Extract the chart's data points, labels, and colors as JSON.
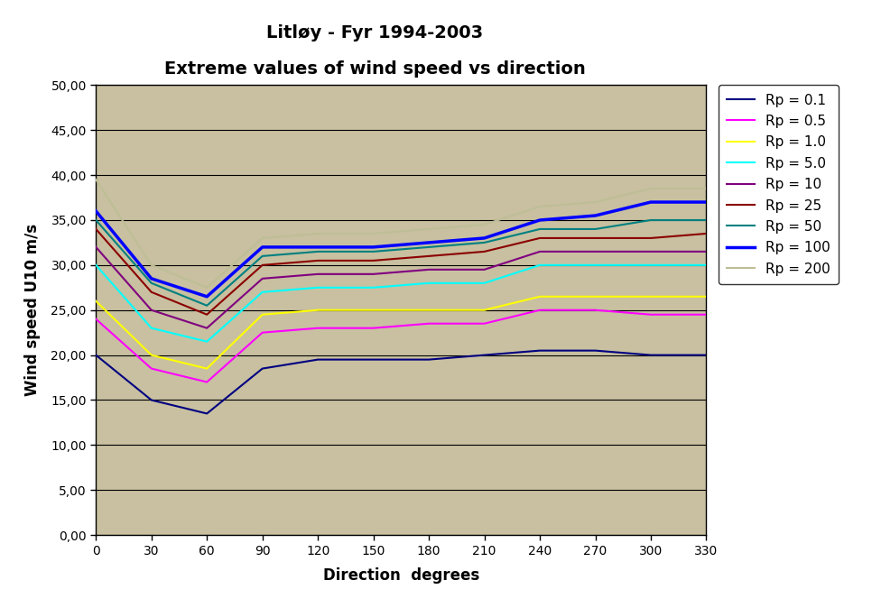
{
  "title_line1": "Litløy - Fyr 1994-2003",
  "title_line2": "Extreme values of wind speed vs direction",
  "xlabel": "Direction  degrees",
  "ylabel": "Wind speed U10 m/s",
  "directions": [
    0,
    30,
    60,
    90,
    120,
    150,
    180,
    210,
    240,
    270,
    300,
    330
  ],
  "series": [
    {
      "label": "Rp = 0.1",
      "color": "#000080",
      "linewidth": 1.5,
      "values": [
        20,
        15,
        13.5,
        18.5,
        19.5,
        19.5,
        19.5,
        20,
        20.5,
        20.5,
        20,
        20
      ]
    },
    {
      "label": "Rp = 0.5",
      "color": "#FF00FF",
      "linewidth": 1.5,
      "values": [
        24,
        18.5,
        17,
        22.5,
        23,
        23,
        23.5,
        23.5,
        25,
        25,
        24.5,
        24.5
      ]
    },
    {
      "label": "Rp = 1.0",
      "color": "#FFFF00",
      "linewidth": 1.5,
      "values": [
        26,
        20,
        18.5,
        24.5,
        25,
        25,
        25,
        25,
        26.5,
        26.5,
        26.5,
        26.5
      ]
    },
    {
      "label": "Rp = 5.0",
      "color": "#00FFFF",
      "linewidth": 1.5,
      "values": [
        30,
        23,
        21.5,
        27,
        27.5,
        27.5,
        28,
        28,
        30,
        30,
        30,
        30
      ]
    },
    {
      "label": "Rp = 10",
      "color": "#800080",
      "linewidth": 1.5,
      "values": [
        32,
        25,
        23,
        28.5,
        29,
        29,
        29.5,
        29.5,
        31.5,
        31.5,
        31.5,
        31.5
      ]
    },
    {
      "label": "Rp = 25",
      "color": "#8B0000",
      "linewidth": 1.5,
      "values": [
        34,
        27,
        24.5,
        30,
        30.5,
        30.5,
        31,
        31.5,
        33,
        33,
        33,
        33.5
      ]
    },
    {
      "label": "Rp = 50",
      "color": "#008080",
      "linewidth": 1.5,
      "values": [
        35,
        28,
        25.5,
        31,
        31.5,
        31.5,
        32,
        32.5,
        34,
        34,
        35,
        35
      ]
    },
    {
      "label": "Rp = 100",
      "color": "#0000FF",
      "linewidth": 2.5,
      "values": [
        36,
        28.5,
        26.5,
        32,
        32,
        32,
        32.5,
        33,
        35,
        35.5,
        37,
        37
      ]
    },
    {
      "label": "Rp = 200",
      "color": "#BEBE96",
      "linewidth": 1.5,
      "values": [
        39.5,
        30,
        27.5,
        33,
        33.5,
        33.5,
        34,
        34.5,
        36.5,
        37,
        38.5,
        38.5
      ]
    }
  ],
  "ylim": [
    0,
    50
  ],
  "yticks": [
    0,
    5,
    10,
    15,
    20,
    25,
    30,
    35,
    40,
    45,
    50
  ],
  "ytick_labels": [
    "0,00",
    "5,00",
    "10,00",
    "15,00",
    "20,00",
    "25,00",
    "30,00",
    "35,00",
    "40,00",
    "45,00",
    "50,00"
  ],
  "xtick_labels": [
    "0",
    "30",
    "60",
    "90",
    "120",
    "150",
    "180",
    "210",
    "240",
    "270",
    "300",
    "330"
  ],
  "plot_bg_color": "#C8C0A0",
  "fig_bg_color": "#FFFFFF",
  "grid_color": "#000000",
  "legend_bg_color": "#FFFFFF",
  "legend_border_color": "#000000",
  "title_fontsize": 14,
  "axis_label_fontsize": 12,
  "tick_fontsize": 10,
  "legend_fontsize": 11
}
